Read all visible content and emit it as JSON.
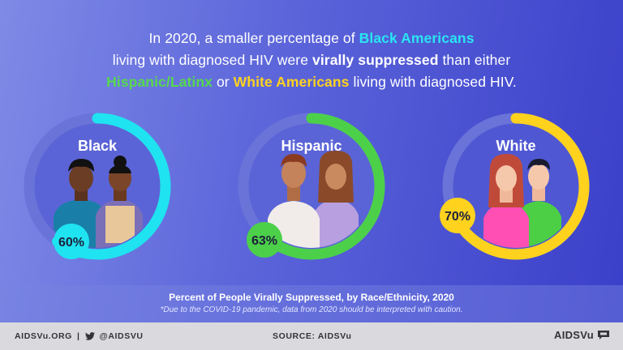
{
  "headline": {
    "l1a": "In 2020, a smaller percentage of ",
    "l1b": "Black Americans",
    "l2a": "living with diagnosed HIV were ",
    "l2b": "virally suppressed",
    "l2c": " than either",
    "l3a": "Hispanic/Latinx",
    "l3b": " or ",
    "l3c": "White Americans",
    "l3d": " living with diagnosed HIV."
  },
  "chart_data": {
    "type": "donut",
    "title": "Percent of People Virally Suppressed, by Race/Ethnicity, 2020",
    "note": "*Due to the COVID-19 pandemic, data from 2020 should be interpreted with caution.",
    "unit": "%",
    "series": [
      {
        "name": "Black",
        "value": 60,
        "label": "60%",
        "color": "#1fe3f0"
      },
      {
        "name": "Hispanic",
        "value": 63,
        "label": "63%",
        "color": "#4cd04a"
      },
      {
        "name": "White",
        "value": 70,
        "label": "70%",
        "color": "#ffd21e"
      }
    ],
    "track_color": "#6a73d8"
  },
  "footer": {
    "site": "AIDSVu.ORG",
    "separator": "|",
    "twitter": "@AIDSVU",
    "source": "SOURCE: AIDSVu",
    "brand": "AIDSVu"
  },
  "icons": {
    "twitter": "twitter-bird-icon",
    "brand": "speech-bubble-map-icon"
  }
}
